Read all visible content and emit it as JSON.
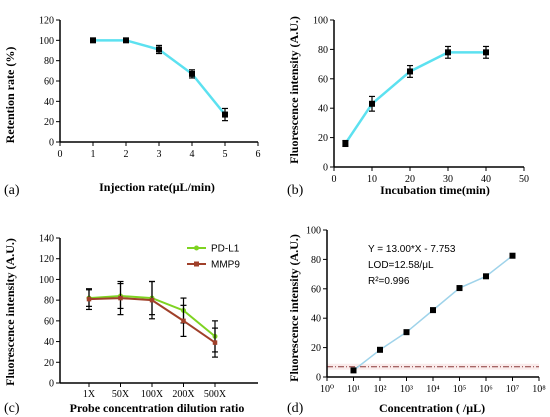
{
  "chart_data": [
    {
      "type": "line",
      "panel_label": "(a)",
      "xlabel": "Injection rate(μL/min)",
      "ylabel": "Retention rate (%)",
      "xlim": [
        0,
        6
      ],
      "ylim": [
        0,
        120
      ],
      "xticks": [
        0,
        1,
        2,
        3,
        4,
        5,
        6
      ],
      "yticks": [
        0,
        20,
        40,
        60,
        80,
        100,
        120
      ],
      "line_color": "#5ce1f0",
      "series": [
        {
          "x": [
            1,
            2,
            3,
            4,
            5
          ],
          "y": [
            100,
            100,
            91,
            67,
            27
          ],
          "err": [
            0,
            0,
            4,
            4,
            6
          ]
        }
      ]
    },
    {
      "type": "line",
      "panel_label": "(b)",
      "xlabel": "Incubation time(min)",
      "ylabel": "Fluorescence intensity (A.U.)",
      "xlim": [
        0,
        50
      ],
      "ylim": [
        0,
        100
      ],
      "xticks": [
        0,
        10,
        20,
        30,
        40,
        50
      ],
      "yticks": [
        0,
        20,
        40,
        60,
        80,
        100
      ],
      "line_color": "#5ce1f0",
      "series": [
        {
          "x": [
            3,
            10,
            20,
            30,
            40
          ],
          "y": [
            16,
            43,
            65,
            78,
            78
          ],
          "err": [
            2,
            5,
            4,
            4,
            4
          ]
        }
      ]
    },
    {
      "type": "line",
      "panel_label": "(c)",
      "xlabel": "Probe concentration dilution ratio",
      "ylabel": "Fluorescence intensity (A.U.)",
      "ylim": [
        0,
        140
      ],
      "categories": [
        "1X",
        "50X",
        "100X",
        "200X",
        "500X"
      ],
      "yticks": [
        0,
        20,
        40,
        60,
        80,
        100,
        120,
        140
      ],
      "legend_position": "top-right",
      "series": [
        {
          "name": "PD-L1",
          "color": "#7ed321",
          "values": [
            82,
            84,
            82,
            70,
            45
          ],
          "err": [
            8,
            12,
            16,
            12,
            15
          ]
        },
        {
          "name": "MMP9",
          "color": "#a0402a",
          "values": [
            81,
            82,
            80,
            60,
            39
          ],
          "err": [
            10,
            16,
            18,
            15,
            14
          ]
        }
      ]
    },
    {
      "type": "scatter",
      "panel_label": "(d)",
      "xlabel": "Concentration ( /μL)",
      "ylabel": "Fluorescence intensity (A.U.)",
      "x_scale": "log",
      "xlim": [
        1,
        100000000
      ],
      "ylim": [
        0,
        100
      ],
      "xtick_labels": [
        "10⁰",
        "10¹",
        "10²",
        "10³",
        "10⁴",
        "10⁵",
        "10⁶",
        "10⁷",
        "10⁸"
      ],
      "yticks": [
        0,
        20,
        40,
        60,
        80,
        100
      ],
      "line_color": "#9fd3ea",
      "threshold_y": 7,
      "threshold_color": "#8b3a3a",
      "series": [
        {
          "x": [
            10,
            100,
            1000,
            10000,
            100000,
            1000000,
            10000000
          ],
          "y": [
            4.5,
            18.5,
            30.5,
            45.5,
            60.5,
            68.5,
            82.5
          ]
        }
      ],
      "annotations": [
        "Y = 13.00*X - 7.753",
        "LOD=12.58/μL",
        "R²=0.996"
      ]
    }
  ]
}
